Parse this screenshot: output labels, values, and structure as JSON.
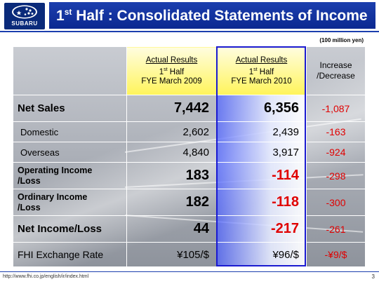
{
  "header": {
    "logo_text": "SUBARU",
    "title_prefix": "1",
    "title_sup": "st",
    "title_rest": " Half : Consolidated Statements of Income"
  },
  "unit_note": "(100 million yen)",
  "table": {
    "headers": {
      "col2": {
        "line1": "Actual Results",
        "line2_num": "1",
        "line2_sup": "st",
        "line2_rest": " Half",
        "line3": "FYE March 2009"
      },
      "col3": {
        "line1": "Actual Results",
        "line2_num": "1",
        "line2_sup": "st",
        "line2_rest": " Half",
        "line3": "FYE March 2010"
      },
      "col4": {
        "line1": "Increase",
        "line2": "/Decrease"
      }
    },
    "rows": [
      {
        "label": "Net Sales",
        "fy2009": "7,442",
        "fy2010": "6,356",
        "change": "-1,087"
      },
      {
        "label": "Domestic",
        "fy2009": "2,602",
        "fy2010": "2,439",
        "change": "-163"
      },
      {
        "label": "Overseas",
        "fy2009": "4,840",
        "fy2010": "3,917",
        "change": "-924"
      },
      {
        "label_line1": "Operating Income",
        "label_line2": "/Loss",
        "fy2009": "183",
        "fy2010": "-114",
        "change": "-298"
      },
      {
        "label_line1": "Ordinary Income",
        "label_line2": "/Loss",
        "fy2009": "182",
        "fy2010": "-118",
        "change": "-300"
      },
      {
        "label": "Net Income/Loss",
        "fy2009": "44",
        "fy2010": "-217",
        "change": "-261"
      },
      {
        "label": "FHI Exchange Rate",
        "fy2009": "¥105/$",
        "fy2010": "¥96/$",
        "change": "-¥9/$"
      }
    ]
  },
  "footer": {
    "url": "http://www.fhi.co.jp/english/ir/index.html",
    "page_number": "3"
  },
  "colors": {
    "title_bar": "#1c3fae",
    "negative": "#e00000",
    "highlight_header": "#fff45a",
    "column_outline": "#1a1ad0"
  }
}
